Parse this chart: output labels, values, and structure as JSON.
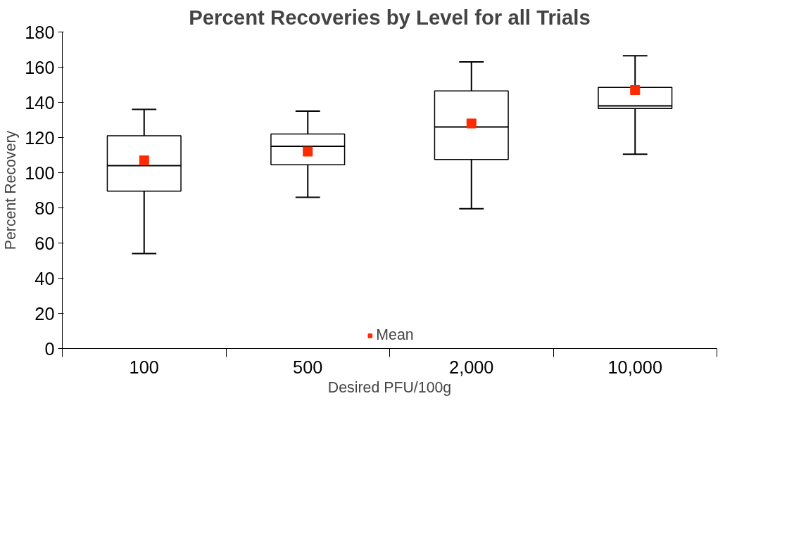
{
  "chart_data": {
    "type": "box",
    "title": "Percent Recoveries by Level for all Trials",
    "xlabel": "Desired PFU/100g",
    "ylabel": "Percent Recovery",
    "categories": [
      "100",
      "500",
      "2,000",
      "10,000"
    ],
    "boxes": [
      {
        "low": 54,
        "q1": 89.5,
        "median": 104,
        "q3": 121,
        "high": 136
      },
      {
        "low": 86,
        "q1": 104.5,
        "median": 115,
        "q3": 122,
        "high": 135
      },
      {
        "low": 79.5,
        "q1": 107.5,
        "median": 126,
        "q3": 146.5,
        "high": 163
      },
      {
        "low": 110.5,
        "q1": 136.5,
        "median": 138,
        "q3": 148.5,
        "high": 166.5
      }
    ],
    "series": [
      {
        "name": "Mean",
        "type": "scatter",
        "color": "#ff2a00",
        "x": [
          "100",
          "500",
          "2,000",
          "10,000"
        ],
        "values": [
          107,
          112,
          128,
          147
        ]
      }
    ],
    "ylim": [
      0,
      180
    ],
    "yticks": [
      0,
      20,
      40,
      60,
      80,
      100,
      120,
      140,
      160,
      180
    ],
    "grid": false,
    "legend": "bottom",
    "marker": "square"
  }
}
